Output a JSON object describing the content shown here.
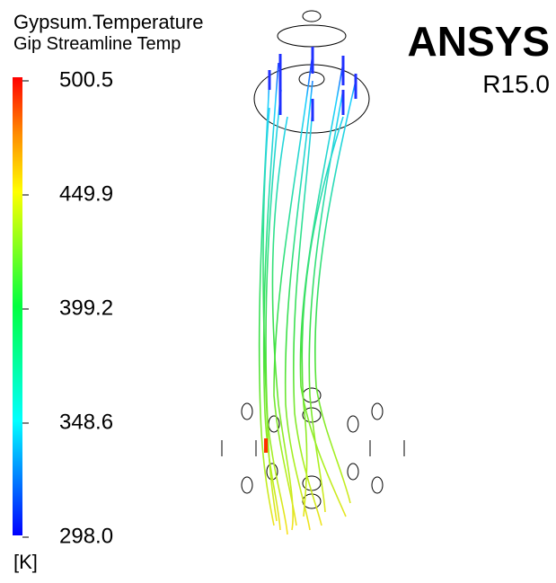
{
  "legend": {
    "title": "Gypsum.Temperature",
    "subtitle": "Gip Streamline Temp",
    "ticks": [
      "500.5",
      "449.9",
      "399.2",
      "348.6",
      "298.0"
    ],
    "unit": "[K]"
  },
  "logo": {
    "name": "ANSYS",
    "version": "R15.0"
  }
}
